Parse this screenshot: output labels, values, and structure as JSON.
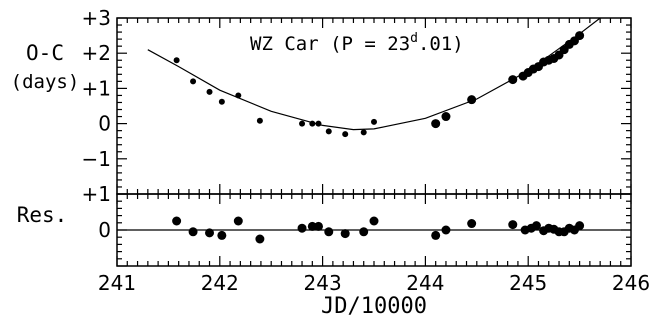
{
  "chart_data": [
    {
      "type": "scatter",
      "panel": "top",
      "annotation": {
        "prefix": "WZ Car (P = 23",
        "superscript": "d",
        "suffix": ".01)"
      },
      "ylabel_line1": "O-C",
      "ylabel_line2": "(days)",
      "xlim": [
        241,
        246
      ],
      "ylim": [
        -2,
        3
      ],
      "yticks": [
        -2,
        -1,
        0,
        1,
        2,
        3
      ],
      "ytick_labels": [
        "",
        "−1",
        "0",
        "+1",
        "+2",
        "+3"
      ],
      "fit_curve": {
        "type": "parabola",
        "x": [
          241.3,
          241.6,
          242.0,
          242.5,
          243.0,
          243.3,
          243.5,
          244.0,
          244.5,
          245.0,
          245.5,
          245.7
        ],
        "y": [
          2.1,
          1.62,
          0.95,
          0.35,
          -0.05,
          -0.17,
          -0.15,
          0.15,
          0.7,
          1.5,
          2.55,
          3.0
        ]
      },
      "series": [
        {
          "marker": "small",
          "x": [
            241.58,
            241.74,
            241.9,
            242.02,
            242.18,
            242.39,
            242.8,
            242.9,
            242.96,
            243.06,
            243.22,
            243.4,
            243.5
          ],
          "y": [
            1.8,
            1.2,
            0.9,
            0.62,
            0.8,
            0.08,
            0.0,
            0.0,
            0.0,
            -0.22,
            -0.3,
            -0.25,
            0.05
          ]
        },
        {
          "marker": "large",
          "x": [
            244.1,
            244.2,
            244.45,
            244.85,
            244.95,
            245.0,
            245.05,
            245.1,
            245.15,
            245.2,
            245.25,
            245.3,
            245.35,
            245.4,
            245.45,
            245.5
          ],
          "y": [
            0.0,
            0.2,
            0.68,
            1.25,
            1.35,
            1.45,
            1.55,
            1.62,
            1.75,
            1.8,
            1.85,
            1.95,
            2.1,
            2.25,
            2.35,
            2.5
          ]
        }
      ]
    },
    {
      "type": "scatter",
      "panel": "bottom",
      "ylabel": "Res.",
      "xlabel": "JD/10000",
      "xlim": [
        241,
        246
      ],
      "ylim": [
        -1,
        1
      ],
      "xticks": [
        241,
        242,
        243,
        244,
        245,
        246
      ],
      "xtick_labels": [
        "241",
        "242",
        "243",
        "244",
        "245",
        "246"
      ],
      "yticks": [
        -1,
        0,
        1
      ],
      "ytick_labels": [
        "",
        "0",
        "+1"
      ],
      "zero_line": true,
      "series": [
        {
          "marker": "large",
          "x": [
            241.58,
            241.74,
            241.9,
            242.02,
            242.18,
            242.39,
            242.8,
            242.9,
            242.96,
            243.06,
            243.22,
            243.4,
            243.5,
            244.1,
            244.2,
            244.45,
            244.85,
            244.97,
            245.03,
            245.08,
            245.15,
            245.2,
            245.25,
            245.3,
            245.35,
            245.4,
            245.45,
            245.5
          ],
          "y": [
            0.25,
            -0.05,
            -0.08,
            -0.15,
            0.25,
            -0.25,
            0.05,
            0.1,
            0.1,
            -0.05,
            -0.1,
            -0.05,
            0.25,
            -0.15,
            0.0,
            0.18,
            0.15,
            0.0,
            0.05,
            0.12,
            -0.02,
            0.05,
            0.02,
            -0.05,
            -0.05,
            0.05,
            0.0,
            0.12
          ]
        }
      ]
    }
  ]
}
